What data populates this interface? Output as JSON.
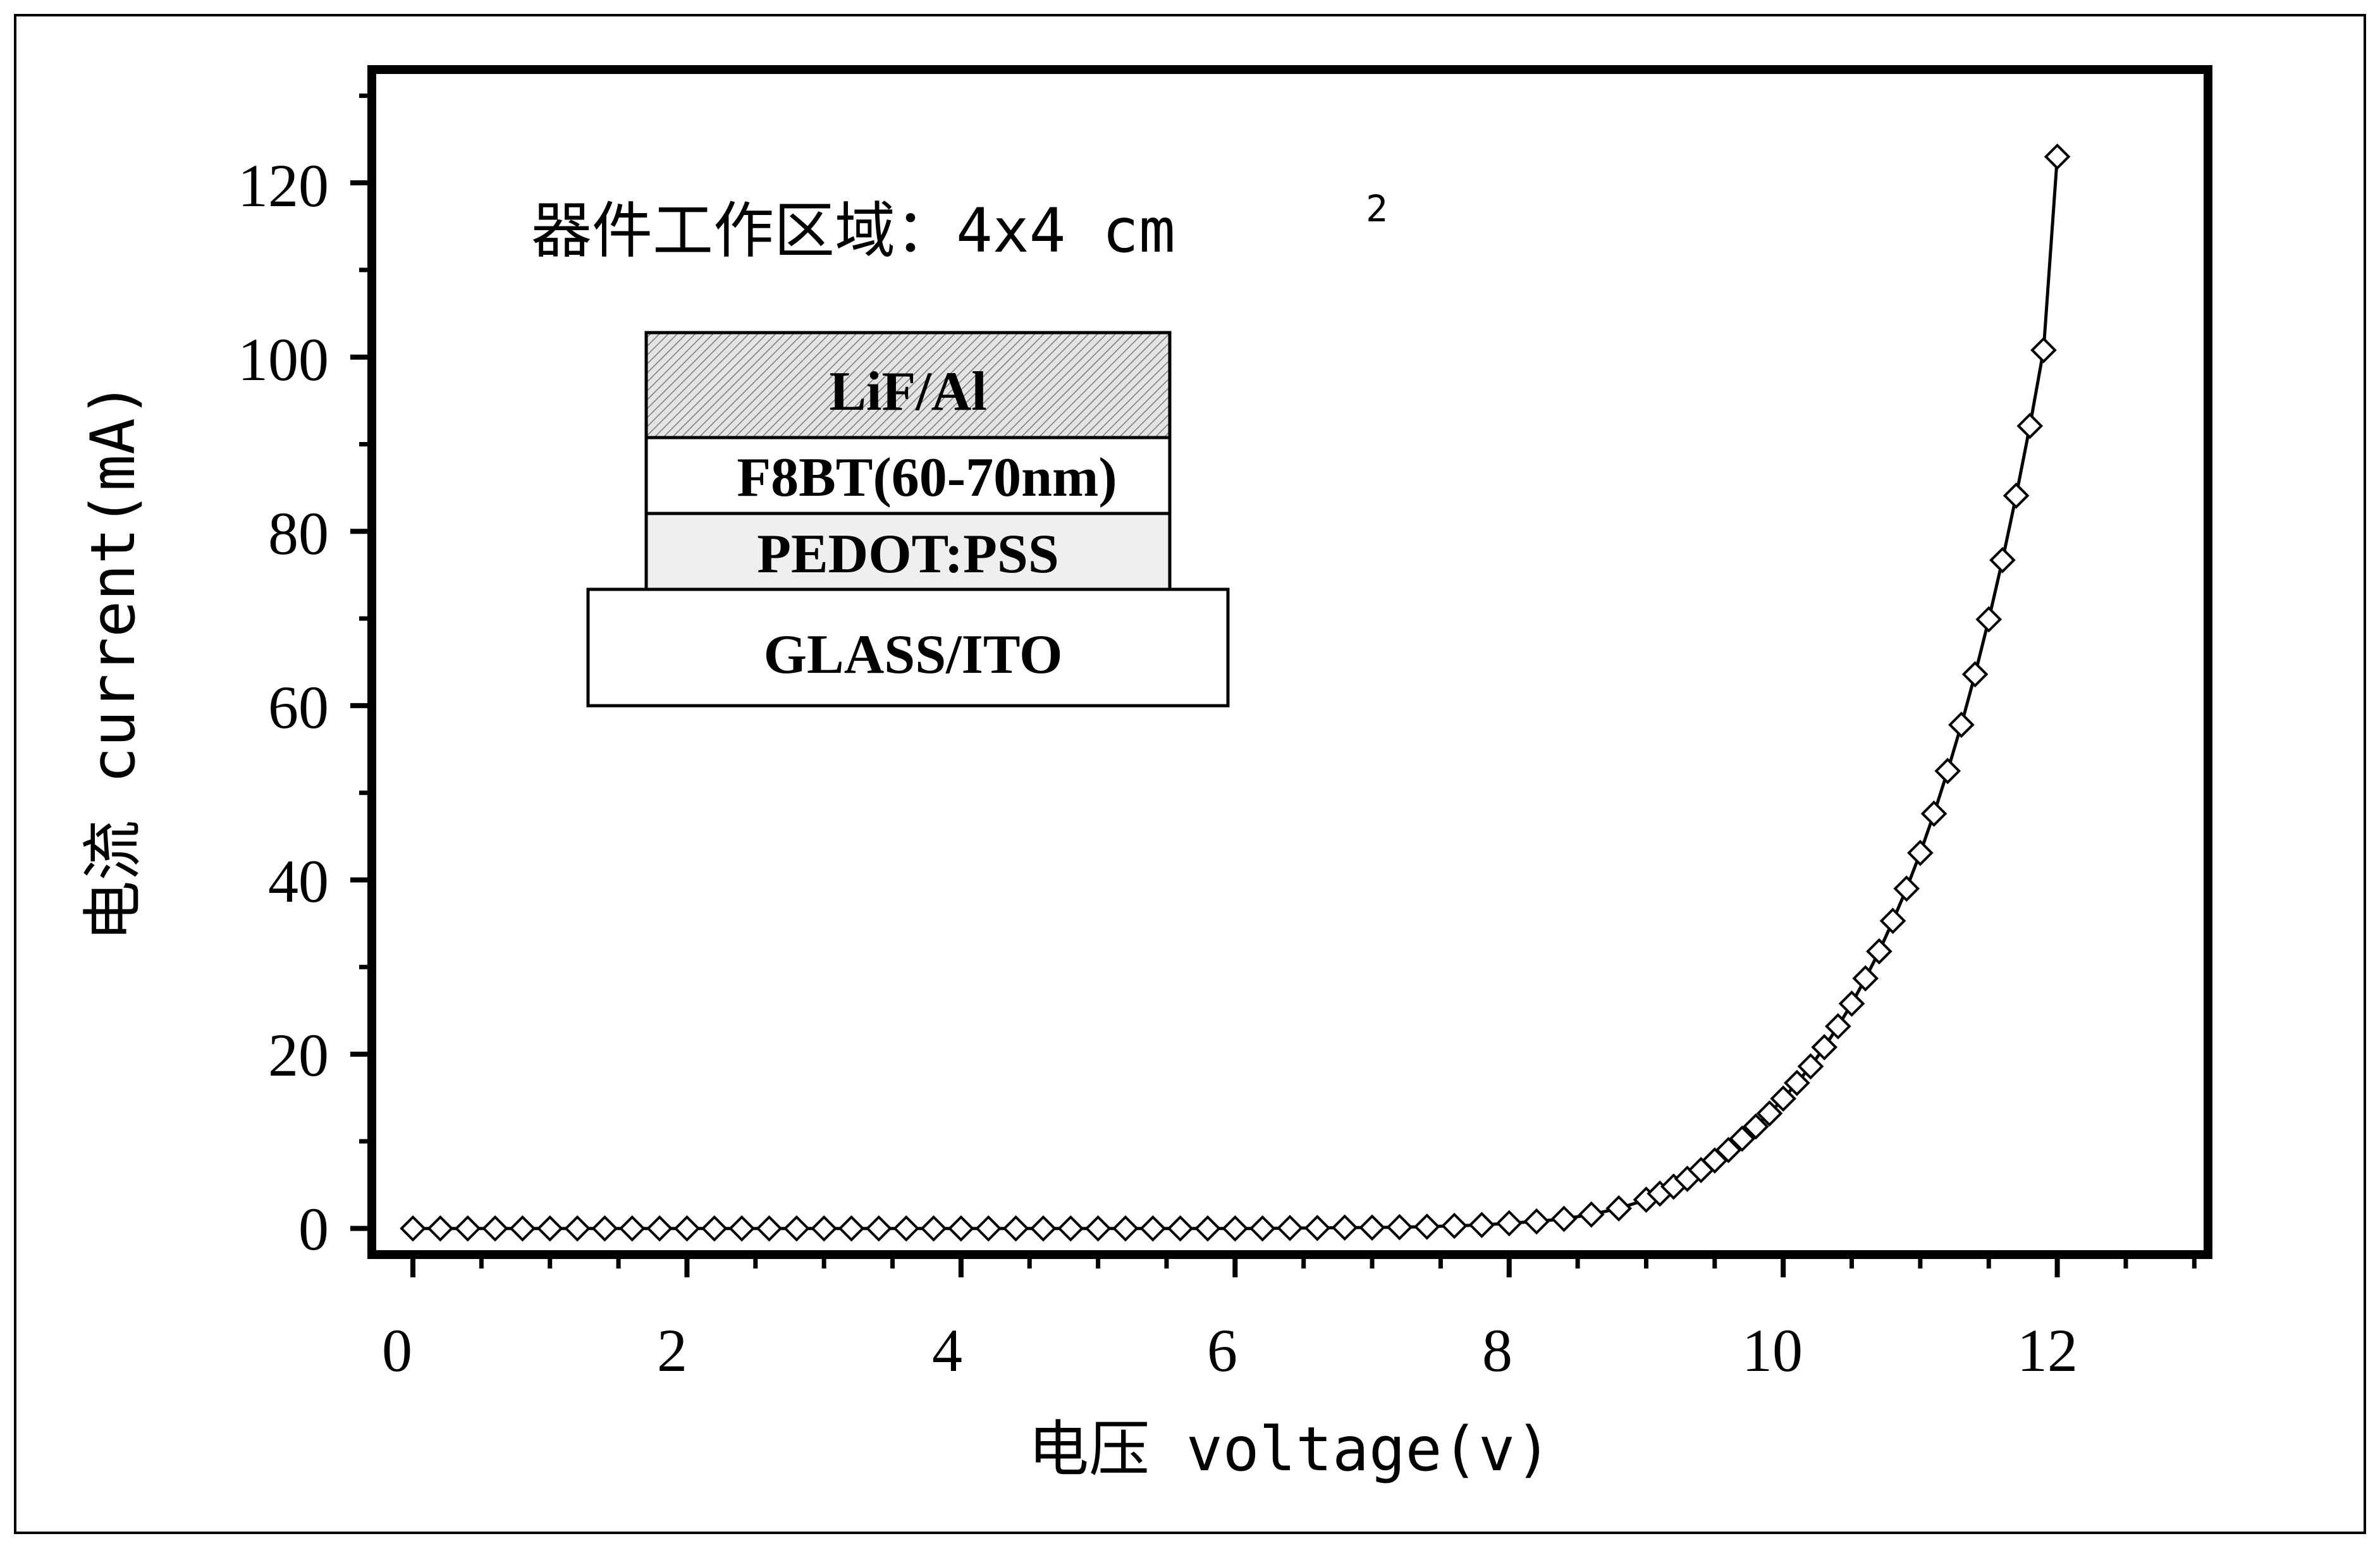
{
  "chart_data": {
    "type": "scatter",
    "xlabel": "电压 voltage(v)",
    "ylabel": "电流 current(mA)",
    "xlim": [
      -0.3,
      13.1
    ],
    "ylim": [
      -3,
      133
    ],
    "x_ticks": [
      "0",
      "2",
      "4",
      "6",
      "8",
      "10",
      "12"
    ],
    "y_ticks": [
      "0",
      "20",
      "40",
      "60",
      "80",
      "100",
      "120"
    ],
    "grid": false,
    "marker": "diamond",
    "line_color": "#000000",
    "annotation_prefix": "器件工作区域：4x4 cm",
    "annotation_superscript": "2",
    "device_layers": [
      "LiF/Al",
      "F8BT(60-70nm)",
      "PEDOT:PSS",
      "GLASS/ITO"
    ],
    "series": [
      {
        "x": [
          0,
          0.2,
          0.4,
          0.6,
          0.8,
          1.0,
          1.2,
          1.4,
          1.6,
          1.8,
          2.0,
          2.2,
          2.4,
          2.6,
          2.8,
          3.0,
          3.2,
          3.4,
          3.6,
          3.8,
          4.0,
          4.2,
          4.4,
          4.6,
          4.8,
          5.0,
          5.2,
          5.4,
          5.6,
          5.8,
          6.0,
          6.2,
          6.4,
          6.6,
          6.8,
          7.0,
          7.2,
          7.4,
          7.6,
          7.8,
          8.0,
          8.2,
          8.4,
          8.6,
          8.8,
          9.0,
          9.1,
          9.2,
          9.3,
          9.4,
          9.5,
          9.6,
          9.7,
          9.8,
          9.9,
          10.0,
          10.1,
          10.2,
          10.3,
          10.4,
          10.5,
          10.6,
          10.7,
          10.8,
          10.9,
          11.0,
          11.1,
          11.2,
          11.3,
          11.4,
          11.5,
          11.6,
          11.7,
          11.8,
          11.9,
          12.0
        ],
        "y": [
          0.0,
          0.0,
          0.0,
          0.0,
          0.0,
          0.0,
          0.0,
          0.0,
          0.0,
          0.0,
          0.0,
          0.0,
          0.0,
          0.0,
          0.0,
          0.0,
          0.0,
          0.0,
          0.0,
          0.0,
          0.0,
          0.0,
          0.0,
          0.0,
          0.0,
          0.0,
          0.0,
          0.0,
          0.0,
          0.0,
          0.0,
          0.0,
          0.05,
          0.05,
          0.1,
          0.1,
          0.15,
          0.2,
          0.3,
          0.4,
          0.6,
          0.8,
          1.1,
          1.6,
          2.3,
          3.3,
          4.0,
          4.8,
          5.7,
          6.7,
          7.8,
          9.0,
          10.3,
          11.7,
          13.2,
          14.9,
          16.7,
          18.6,
          20.8,
          23.2,
          25.8,
          28.7,
          31.8,
          35.3,
          39.0,
          43.1,
          47.6,
          52.5,
          57.8,
          63.6,
          69.9,
          76.7,
          84.1,
          92.1,
          100.8,
          123.0
        ]
      }
    ]
  }
}
